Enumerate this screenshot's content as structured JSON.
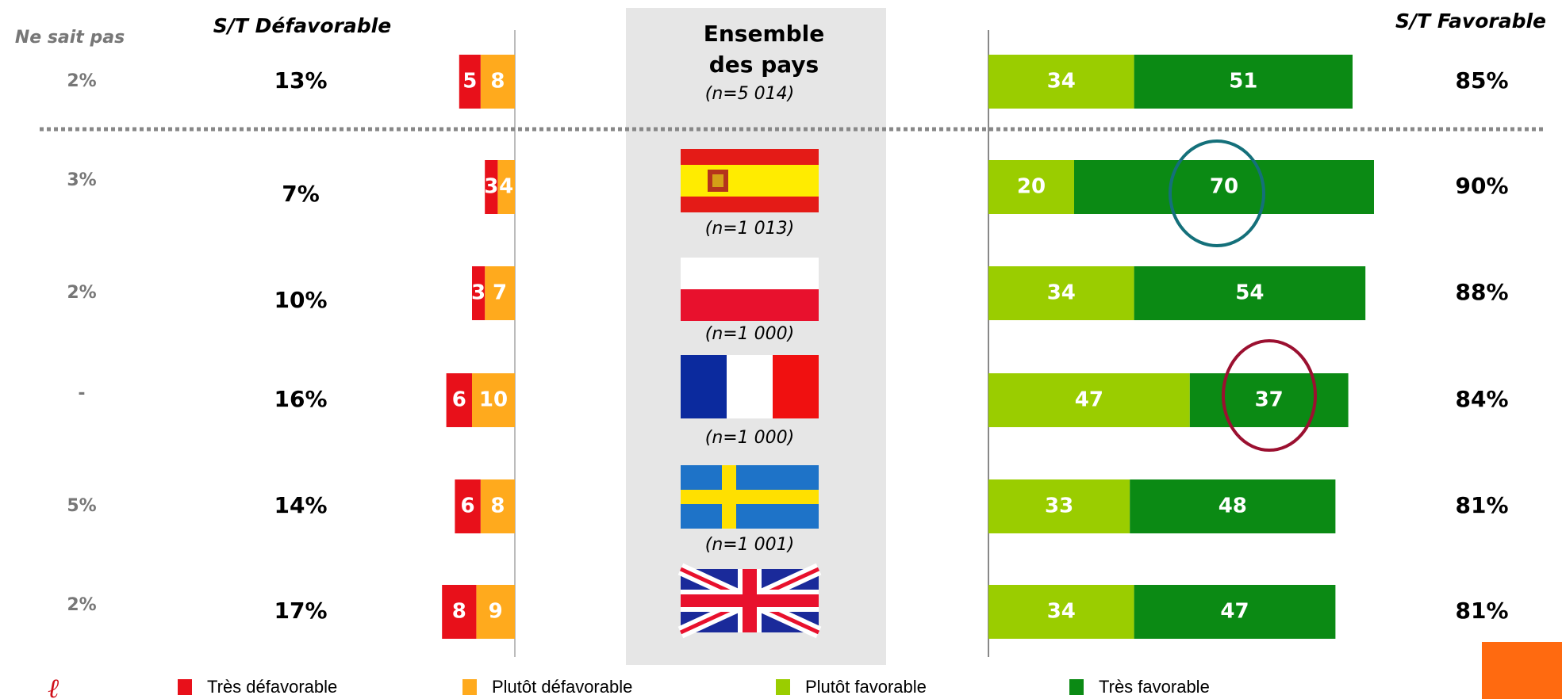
{
  "chart_data": {
    "type": "diverging_bar",
    "unknown_title": "Ne sait pas",
    "unfavorable_title": "S/T Défavorable",
    "favorable_title": "S/T Favorable",
    "categories": [
      "Ensemble des pays",
      null,
      null,
      null,
      null,
      null
    ],
    "sample_sizes": [
      "(n=5 014)",
      "(n=1 013)",
      "(n=1 000)",
      "(n=1 000)",
      "(n=1 001)",
      null
    ],
    "series": [
      {
        "name": "Très défavorable",
        "color": "#e8101a",
        "values": [
          5,
          3,
          3,
          6,
          6,
          8
        ]
      },
      {
        "name": "Plutôt défavorable",
        "color": "#ffaa1d",
        "values": [
          8,
          4,
          7,
          10,
          8,
          9
        ]
      },
      {
        "name": "Plutôt favorable",
        "color": "#9acd00",
        "values": [
          34,
          20,
          34,
          47,
          33,
          34
        ]
      },
      {
        "name": "Très favorable",
        "color": "#0b8a14",
        "values": [
          51,
          70,
          54,
          37,
          48,
          47
        ]
      }
    ],
    "unknown": {
      "values": [
        2,
        3,
        2,
        null,
        5,
        2
      ],
      "value_labels": [
        "2%",
        "3%",
        "2%",
        "-",
        "5%",
        "2%"
      ]
    },
    "unfavorable_total": {
      "values": [
        13,
        7,
        10,
        16,
        14,
        17
      ],
      "value_labels": [
        "13%",
        "7%",
        "10%",
        "16%",
        "14%",
        "17%"
      ]
    },
    "favorable_total": {
      "values": [
        85,
        90,
        88,
        84,
        81,
        81
      ],
      "value_labels": [
        "85%",
        "90%",
        "88%",
        "84%",
        "81%",
        "81%"
      ]
    }
  }
}
